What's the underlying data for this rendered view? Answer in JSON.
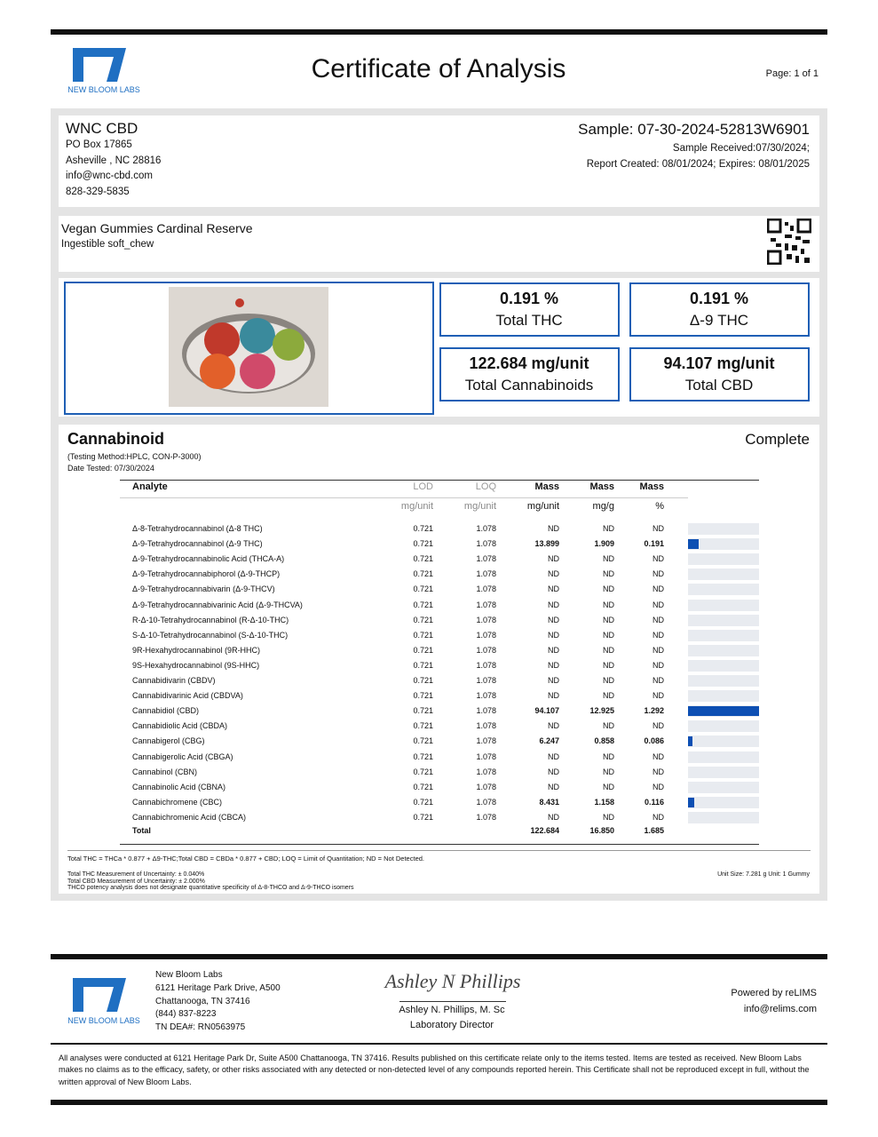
{
  "header": {
    "logo_text": "NEW BLOOM LABS",
    "title": "Certificate of Analysis",
    "page": "Page: 1 of 1"
  },
  "client": {
    "name": "WNC CBD",
    "lines": [
      "PO Box 17865",
      "Asheville , NC 28816",
      "info@wnc-cbd.com",
      "828-329-5835"
    ]
  },
  "sample": {
    "id": "Sample: 07-30-2024-52813W6901",
    "received": "Sample Received:07/30/2024;",
    "report": "Report Created: 08/01/2024; Expires: 08/01/2025"
  },
  "product": {
    "name": "Vegan Gummies Cardinal Reserve",
    "type": "Ingestible soft_chew"
  },
  "summary": [
    {
      "value": "0.191 %",
      "label": "Total THC"
    },
    {
      "value": "0.191 %",
      "label": "Δ-9 THC"
    },
    {
      "value": "122.684 mg/unit",
      "label": "Total Cannabinoids"
    },
    {
      "value": "94.107 mg/unit",
      "label": "Total CBD"
    }
  ],
  "cannabinoid": {
    "title": "Cannabinoid",
    "status": "Complete",
    "method": "(Testing Method:HPLC, CON-P-3000)",
    "date_tested": "Date Tested: 07/30/2024",
    "columns": [
      "Analyte",
      "LOD",
      "LOQ",
      "Mass",
      "Mass",
      "Mass"
    ],
    "units": [
      "mg/unit",
      "mg/unit",
      "mg/unit",
      "mg/g",
      "%"
    ],
    "rows": [
      [
        "Δ-8-Tetrahydrocannabinol (Δ-8 THC)",
        0.721,
        1.078,
        "ND",
        "ND",
        "ND"
      ],
      [
        "Δ-9-Tetrahydrocannabinol (Δ-9 THC)",
        0.721,
        1.078,
        13.899,
        1.909,
        0.191
      ],
      [
        "Δ-9-Tetrahydrocannabinolic Acid (THCA-A)",
        0.721,
        1.078,
        "ND",
        "ND",
        "ND"
      ],
      [
        "Δ-9-Tetrahydrocannabiphorol (Δ-9-THCP)",
        0.721,
        1.078,
        "ND",
        "ND",
        "ND"
      ],
      [
        "Δ-9-Tetrahydrocannabivarin (Δ-9-THCV)",
        0.721,
        1.078,
        "ND",
        "ND",
        "ND"
      ],
      [
        "Δ-9-Tetrahydrocannabivarinic Acid (Δ-9-THCVA)",
        0.721,
        1.078,
        "ND",
        "ND",
        "ND"
      ],
      [
        "R-Δ-10-Tetrahydrocannabinol (R-Δ-10-THC)",
        0.721,
        1.078,
        "ND",
        "ND",
        "ND"
      ],
      [
        "S-Δ-10-Tetrahydrocannabinol (S-Δ-10-THC)",
        0.721,
        1.078,
        "ND",
        "ND",
        "ND"
      ],
      [
        "9R-Hexahydrocannabinol (9R-HHC)",
        0.721,
        1.078,
        "ND",
        "ND",
        "ND"
      ],
      [
        "9S-Hexahydrocannabinol (9S-HHC)",
        0.721,
        1.078,
        "ND",
        "ND",
        "ND"
      ],
      [
        "Cannabidivarin (CBDV)",
        0.721,
        1.078,
        "ND",
        "ND",
        "ND"
      ],
      [
        "Cannabidivarinic Acid (CBDVA)",
        0.721,
        1.078,
        "ND",
        "ND",
        "ND"
      ],
      [
        "Cannabidiol (CBD)",
        0.721,
        1.078,
        94.107,
        12.925,
        1.292
      ],
      [
        "Cannabidiolic Acid (CBDA)",
        0.721,
        1.078,
        "ND",
        "ND",
        "ND"
      ],
      [
        "Cannabigerol (CBG)",
        0.721,
        1.078,
        6.247,
        0.858,
        0.086
      ],
      [
        "Cannabigerolic Acid (CBGA)",
        0.721,
        1.078,
        "ND",
        "ND",
        "ND"
      ],
      [
        "Cannabinol (CBN)",
        0.721,
        1.078,
        "ND",
        "ND",
        "ND"
      ],
      [
        "Cannabinolic Acid (CBNA)",
        0.721,
        1.078,
        "ND",
        "ND",
        "ND"
      ],
      [
        "Cannabichromene (CBC)",
        0.721,
        1.078,
        8.431,
        1.158,
        0.116
      ],
      [
        "Cannabichromenic Acid (CBCA)",
        0.721,
        1.078,
        "ND",
        "ND",
        "ND"
      ]
    ],
    "total": {
      "label": "Total",
      "mass": 122.684,
      "mass_g": "16.850",
      "percent": 1.685
    },
    "formula": "Total THC = THCa * 0.877 + Δ9-THC;Total CBD = CBDa * 0.877 + CBD; LOQ = Limit of Quantitation; ND = Not Detected.",
    "notes": [
      "Total THC Measurement of Uncertainty: ± 0.040%",
      "Total CBD Measurement of Uncertainty: ± 2.000%",
      "THCO potency analysis does not designate quantitative specificity of Δ-8-THCO and Δ-9-THCO isomers"
    ],
    "unit_size": "Unit Size: 7.281 g Unit: 1 Gummy"
  },
  "footer": {
    "logo_text": "NEW BLOOM LABS",
    "lab_lines": [
      "New Bloom Labs",
      "6121 Heritage Park Drive, A500",
      "Chattanooga, TN 37416",
      "(844) 837-8223",
      "TN DEA#: RN0563975"
    ],
    "signature": "Ashley N Phillips",
    "director_name": "Ashley N. Phillips, M. Sc",
    "director_title": "Laboratory Director",
    "powered": "Powered by reLIMS",
    "powered_email": "info@relims.com",
    "disclaimer": "All analyses were conducted at 6121 Heritage Park Dr, Suite A500 Chattanooga, TN 37416. Results published on this certificate relate only to the items tested. Items are tested as received. New Bloom Labs makes no claims as to the efficacy, safety, or other risks associated with any detected or non-detected level of any compounds reported herein. This Certificate shall not be reproduced except in full, without the written approval of New Bloom Labs."
  }
}
